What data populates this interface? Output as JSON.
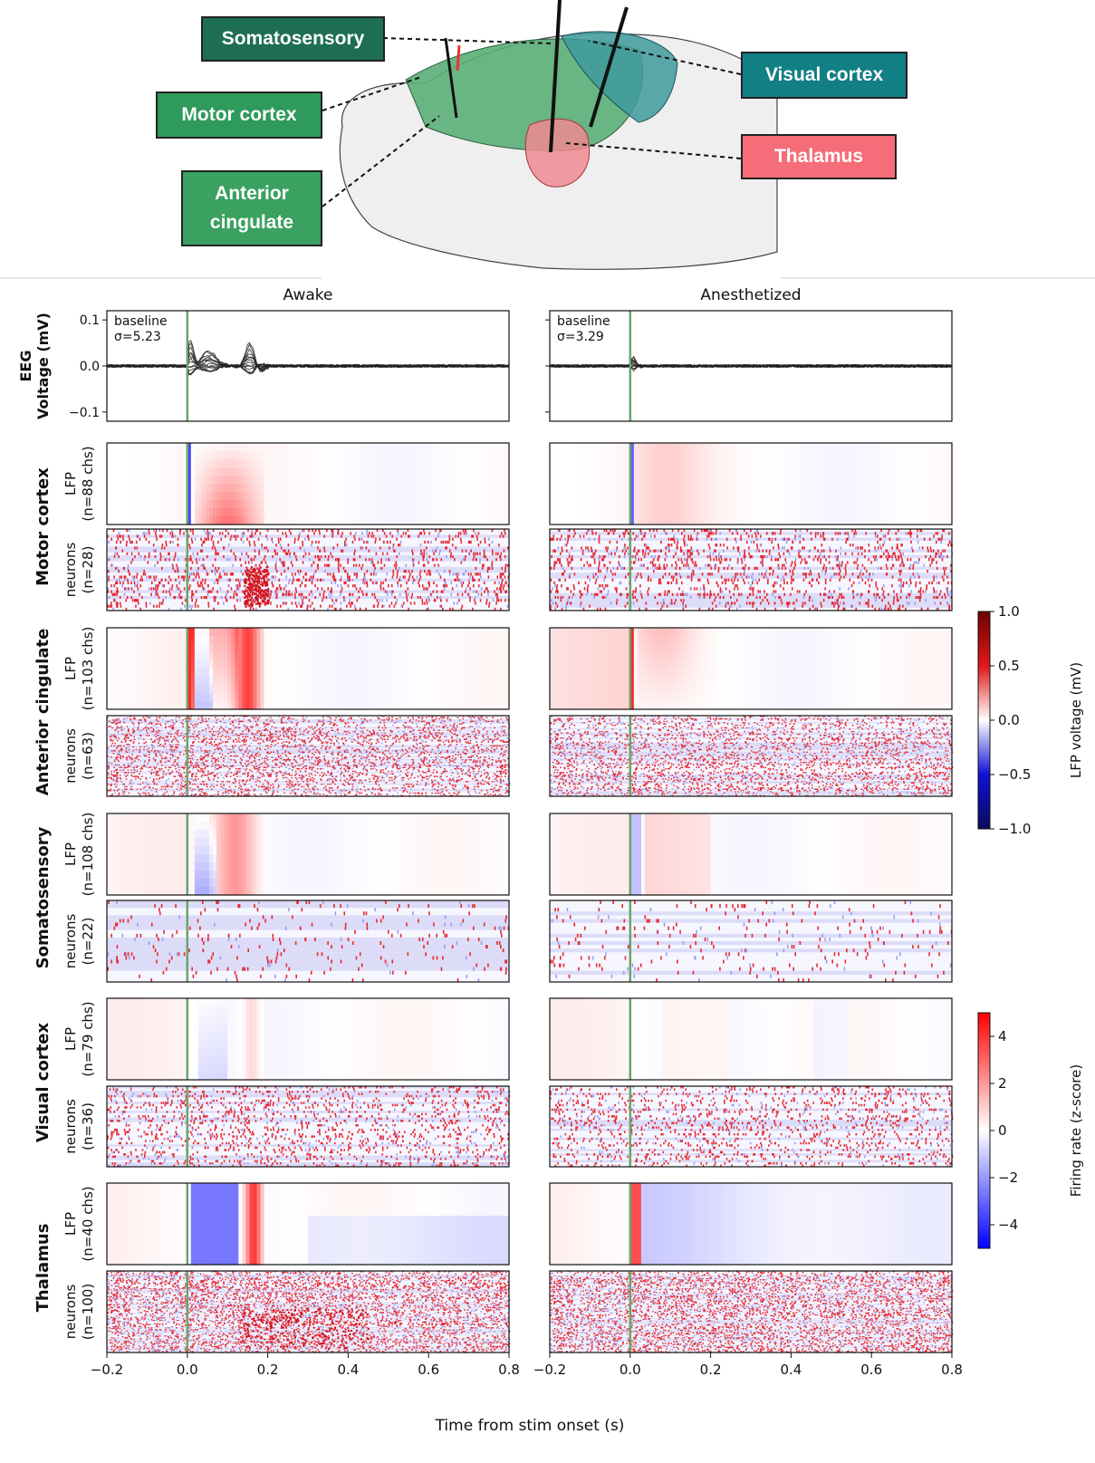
{
  "brain": {
    "labels": [
      {
        "id": "somatosensory",
        "text": "Somatosensory",
        "color": "#1e6e55"
      },
      {
        "id": "motor",
        "text": "Motor cortex",
        "color": "#2e9a5c"
      },
      {
        "id": "anterior",
        "lines": [
          "Anterior",
          "cingulate"
        ],
        "color": "#3aa160"
      },
      {
        "id": "visual",
        "text": "Visual cortex",
        "color": "#127f84"
      },
      {
        "id": "thalamus",
        "text": "Thalamus",
        "color": "#f46d78"
      }
    ]
  },
  "chart_data": {
    "type": "heatmap",
    "column_titles": [
      "Awake",
      "Anesthetized"
    ],
    "xlabel": "Time from stim onset (s)",
    "xlim": [
      -0.2,
      0.8
    ],
    "x_ticks": [
      "−0.2",
      "0.0",
      "0.2",
      "0.4",
      "0.6",
      "0.8"
    ],
    "stim_onset": 0.0,
    "eeg": {
      "row_label_lines": [
        "EEG",
        "Voltage (mV)"
      ],
      "ylim": [
        -0.12,
        0.12
      ],
      "y_ticks": [
        {
          "v": 0.1,
          "t": "0.1"
        },
        {
          "v": 0.0,
          "t": "0.0"
        },
        {
          "v": -0.1,
          "t": "−0.1"
        }
      ],
      "baseline": [
        {
          "line1": "baseline",
          "line2": "σ=5.23"
        },
        {
          "line1": "baseline",
          "line2": "σ=3.29"
        }
      ]
    },
    "regions": [
      {
        "name": "Motor cortex",
        "lfp_label": [
          "LFP",
          "(n=88 chs)"
        ],
        "neuron_label": [
          "neurons",
          "(n=28)"
        ]
      },
      {
        "name": "Anterior cingulate",
        "lfp_label": [
          "LFP",
          "(n=103 chs)"
        ],
        "neuron_label": [
          "neurons",
          "(n=63)"
        ]
      },
      {
        "name": "Somatosensory",
        "lfp_label": [
          "LFP",
          "(n=108 chs)"
        ],
        "neuron_label": [
          "neurons",
          "(n=22)"
        ]
      },
      {
        "name": "Visual cortex",
        "lfp_label": [
          "LFP",
          "(n=79 chs)"
        ],
        "neuron_label": [
          "neurons",
          "(n=36)"
        ]
      },
      {
        "name": "Thalamus",
        "lfp_label": [
          "LFP",
          "(n=40 chs)"
        ],
        "neuron_label": [
          "neurons",
          "(n=100)"
        ]
      }
    ],
    "colorbars": [
      {
        "label": "LFP voltage (mV)",
        "range": [
          -1.0,
          1.0
        ],
        "ticks": [
          {
            "v": 1.0,
            "t": "1.0"
          },
          {
            "v": 0.5,
            "t": "0.5"
          },
          {
            "v": 0.0,
            "t": "0.0"
          },
          {
            "v": -0.5,
            "t": "−0.5"
          },
          {
            "v": -1.0,
            "t": "−1.0"
          }
        ],
        "colors": [
          "#0a0a5e",
          "#1010d8",
          "#ffffff",
          "#e01818",
          "#6e0000"
        ]
      },
      {
        "label": "Firing rate (z-score)",
        "range": [
          -5,
          5
        ],
        "ticks": [
          {
            "v": 4,
            "t": "4"
          },
          {
            "v": 2,
            "t": "2"
          },
          {
            "v": 0,
            "t": "0"
          },
          {
            "v": -2,
            "t": "−2"
          },
          {
            "v": -4,
            "t": "−4"
          }
        ],
        "colors": [
          "#0000ff",
          "#ffffff",
          "#ff0000"
        ]
      }
    ]
  }
}
